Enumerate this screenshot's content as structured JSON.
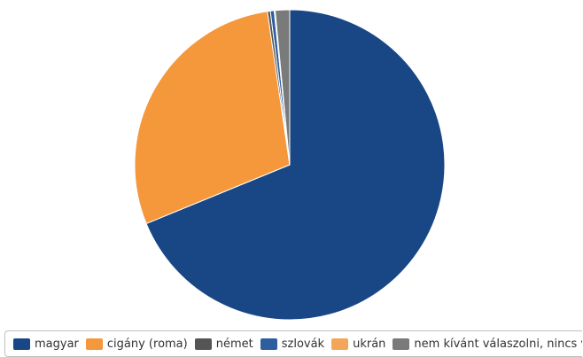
{
  "chart_data": {
    "type": "pie",
    "title": "",
    "categories": [
      "magyar",
      "cigány (roma)",
      "német",
      "szlovák",
      "ukrán",
      "nem kívánt válaszolni, nincs válasz"
    ],
    "values": [
      68.8,
      28.9,
      0.3,
      0.4,
      0.1,
      1.5
    ],
    "unit": "%",
    "colors": [
      "#194785",
      "#f5973b",
      "#555555",
      "#2e5e9e",
      "#f3a55a",
      "#7a7a7a"
    ],
    "legend_position": "bottom",
    "start_angle_deg": 0,
    "direction": "clockwise"
  },
  "legend": {
    "items": [
      {
        "label": "magyar",
        "color": "#194785"
      },
      {
        "label": "cigány (roma)",
        "color": "#f5973b"
      },
      {
        "label": "német",
        "color": "#555555"
      },
      {
        "label": "szlovák",
        "color": "#2e5e9e"
      },
      {
        "label": "ukrán",
        "color": "#f3a55a"
      },
      {
        "label": "nem kívánt válaszolni, nincs válasz",
        "color": "#7a7a7a"
      }
    ]
  }
}
